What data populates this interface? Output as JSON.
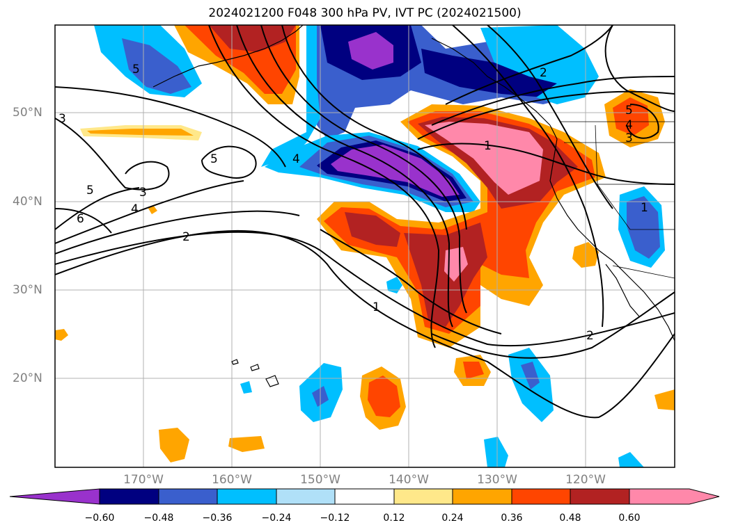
{
  "title": "2024021200 F048 300 hPa PV, IVT PC (2024021500)",
  "map": {
    "lat_labels": [
      "50°N",
      "40°N",
      "30°N",
      "20°N"
    ],
    "lon_labels": [
      "170°W",
      "160°W",
      "150°W",
      "140°W",
      "130°W",
      "120°W"
    ],
    "contour_labels": [
      "5",
      "3",
      "5",
      "4",
      "5",
      "3",
      "4",
      "6",
      "2",
      "1",
      "2",
      "1",
      "2",
      "5",
      "4",
      "3",
      "1"
    ],
    "colors": {
      "deep_negative": "#000080",
      "purple_negative": "#9932cc",
      "blue_negative": "#3a5fcd",
      "sky_negative": "#00bfff",
      "light_negative": "#b0e0f8",
      "light_positive": "#ffe88a",
      "orange_positive": "#ffa500",
      "red_positive": "#ff4500",
      "dark_red_positive": "#b22222",
      "pink_positive": "#ff88aa"
    }
  },
  "colorbar": {
    "tick_labels": [
      "−0.60",
      "−0.48",
      "−0.36",
      "−0.24",
      "−0.12",
      "0.12",
      "0.24",
      "0.36",
      "0.48",
      "0.60"
    ],
    "bins": [
      "#9932cc",
      "#000080",
      "#3a5fcd",
      "#00bfff",
      "#b0e0f8",
      "#ffffff",
      "#ffe88a",
      "#ffa500",
      "#ff4500",
      "#b22222",
      "#ff88aa"
    ]
  }
}
